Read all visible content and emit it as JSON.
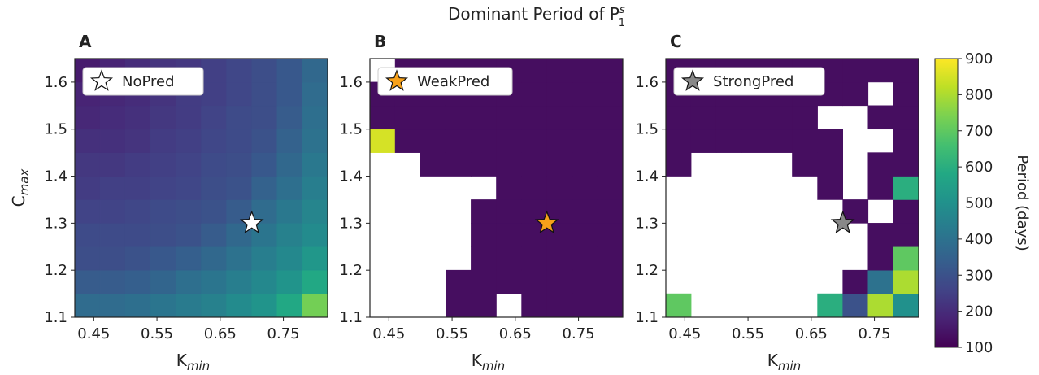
{
  "figure": {
    "title": "Dominant Period of P",
    "title_sup": "s",
    "title_sub": "1",
    "colorbar": {
      "label": "Period (days)",
      "lim": [
        100,
        900
      ],
      "ticks": [
        100,
        200,
        300,
        400,
        500,
        600,
        700,
        800,
        900
      ],
      "colormap": "viridis"
    }
  },
  "chart_data": [
    {
      "type": "contour",
      "panel": "A",
      "xlabel": "K",
      "xlabel_sub": "min",
      "ylabel": "C",
      "ylabel_sub": "max",
      "xlim": [
        0.42,
        0.82
      ],
      "ylim": [
        1.1,
        1.65
      ],
      "xticks": [
        0.45,
        0.55,
        0.65,
        0.75
      ],
      "yticks": [
        1.1,
        1.2,
        1.3,
        1.4,
        1.5,
        1.6
      ],
      "x": [
        0.44,
        0.48,
        0.52,
        0.56,
        0.6,
        0.64,
        0.68,
        0.72,
        0.76,
        0.8
      ],
      "y": [
        1.125,
        1.175,
        1.225,
        1.275,
        1.325,
        1.375,
        1.425,
        1.475,
        1.525,
        1.575,
        1.625
      ],
      "z": [
        [
          380,
          380,
          390,
          410,
          430,
          450,
          480,
          510,
          580,
          730
        ],
        [
          330,
          330,
          340,
          360,
          390,
          410,
          440,
          470,
          510,
          580
        ],
        [
          290,
          290,
          300,
          320,
          340,
          370,
          400,
          440,
          470,
          520
        ],
        [
          280,
          280,
          280,
          290,
          300,
          330,
          370,
          410,
          450,
          480
        ],
        [
          260,
          260,
          270,
          280,
          290,
          300,
          330,
          380,
          420,
          460
        ],
        [
          240,
          250,
          250,
          260,
          270,
          290,
          300,
          350,
          390,
          440
        ],
        [
          230,
          230,
          240,
          250,
          260,
          280,
          290,
          320,
          370,
          420
        ],
        [
          210,
          210,
          220,
          240,
          250,
          270,
          280,
          300,
          350,
          400
        ],
        [
          190,
          200,
          210,
          230,
          240,
          260,
          280,
          290,
          330,
          390
        ],
        [
          180,
          190,
          200,
          220,
          240,
          250,
          270,
          290,
          320,
          380
        ],
        [
          160,
          180,
          200,
          220,
          230,
          250,
          270,
          290,
          320,
          370
        ]
      ],
      "marker": {
        "x": 0.7,
        "y": 1.3,
        "color": "#ffffff",
        "label": "NoPred"
      }
    },
    {
      "type": "contour",
      "panel": "B",
      "xlabel": "K",
      "xlabel_sub": "min",
      "xlim": [
        0.42,
        0.82
      ],
      "ylim": [
        1.1,
        1.65
      ],
      "xticks": [
        0.45,
        0.55,
        0.65,
        0.75
      ],
      "yticks": [
        1.1,
        1.2,
        1.3,
        1.4,
        1.5,
        1.6
      ],
      "x": [
        0.44,
        0.48,
        0.52,
        0.56,
        0.6,
        0.64,
        0.68,
        0.72,
        0.76,
        0.8
      ],
      "y": [
        1.125,
        1.175,
        1.225,
        1.275,
        1.325,
        1.375,
        1.425,
        1.475,
        1.525,
        1.575,
        1.625
      ],
      "z": [
        [
          null,
          null,
          null,
          130,
          130,
          null,
          130,
          130,
          130,
          130
        ],
        [
          null,
          null,
          null,
          130,
          130,
          130,
          130,
          130,
          130,
          130
        ],
        [
          null,
          null,
          null,
          null,
          130,
          130,
          130,
          130,
          130,
          130
        ],
        [
          null,
          null,
          null,
          null,
          130,
          130,
          130,
          130,
          130,
          130
        ],
        [
          null,
          null,
          null,
          null,
          130,
          130,
          130,
          130,
          130,
          130
        ],
        [
          null,
          null,
          null,
          null,
          null,
          130,
          130,
          130,
          130,
          130
        ],
        [
          null,
          null,
          130,
          130,
          130,
          130,
          130,
          130,
          130,
          130
        ],
        [
          850,
          130,
          130,
          130,
          130,
          130,
          130,
          130,
          130,
          130
        ],
        [
          130,
          130,
          130,
          130,
          130,
          130,
          130,
          130,
          130,
          130
        ],
        [
          130,
          130,
          130,
          130,
          130,
          130,
          130,
          130,
          130,
          130
        ],
        [
          null,
          130,
          130,
          130,
          130,
          130,
          130,
          130,
          130,
          130
        ]
      ],
      "marker": {
        "x": 0.7,
        "y": 1.3,
        "color": "#f7a11a",
        "label": "WeakPred"
      }
    },
    {
      "type": "contour",
      "panel": "C",
      "xlabel": "K",
      "xlabel_sub": "min",
      "xlim": [
        0.42,
        0.82
      ],
      "ylim": [
        1.1,
        1.65
      ],
      "xticks": [
        0.45,
        0.55,
        0.65,
        0.75
      ],
      "yticks": [
        1.1,
        1.2,
        1.3,
        1.4,
        1.5,
        1.6
      ],
      "x": [
        0.44,
        0.48,
        0.52,
        0.56,
        0.6,
        0.64,
        0.68,
        0.72,
        0.76,
        0.8
      ],
      "y": [
        1.125,
        1.175,
        1.225,
        1.275,
        1.325,
        1.375,
        1.425,
        1.475,
        1.525,
        1.575,
        1.625
      ],
      "z": [
        [
          700,
          null,
          null,
          null,
          null,
          null,
          600,
          300,
          800,
          500
        ],
        [
          null,
          null,
          null,
          null,
          null,
          null,
          null,
          130,
          400,
          800
        ],
        [
          null,
          null,
          null,
          null,
          null,
          null,
          null,
          null,
          130,
          700
        ],
        [
          null,
          null,
          null,
          null,
          null,
          null,
          null,
          null,
          130,
          130
        ],
        [
          null,
          null,
          null,
          null,
          null,
          null,
          null,
          130,
          null,
          130
        ],
        [
          null,
          null,
          null,
          null,
          null,
          null,
          130,
          null,
          130,
          600
        ],
        [
          130,
          null,
          null,
          null,
          null,
          130,
          130,
          null,
          130,
          130
        ],
        [
          130,
          130,
          130,
          130,
          130,
          130,
          130,
          null,
          null,
          130
        ],
        [
          130,
          130,
          130,
          130,
          130,
          130,
          null,
          null,
          130,
          130
        ],
        [
          130,
          130,
          130,
          130,
          130,
          130,
          130,
          130,
          null,
          130
        ],
        [
          130,
          130,
          130,
          130,
          130,
          130,
          130,
          130,
          130,
          130
        ]
      ],
      "marker": {
        "x": 0.7,
        "y": 1.3,
        "color": "#888888",
        "label": "StrongPred"
      }
    }
  ]
}
